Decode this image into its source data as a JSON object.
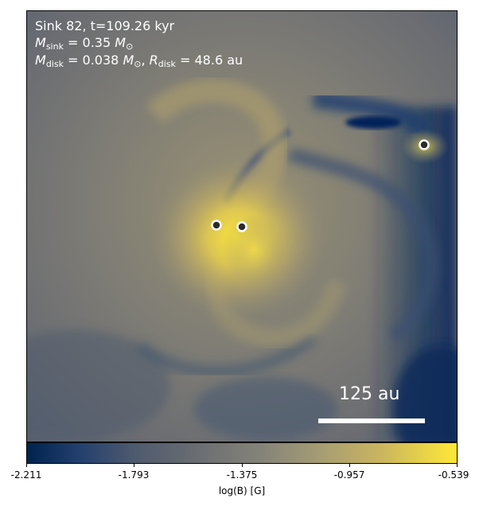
{
  "annotation": {
    "title": "Sink 82, t=109.26 kyr",
    "m_sink_symbol": "M",
    "m_sink_sub": "sink",
    "m_sink_value": "= 0.35",
    "m_sink_unit": "M",
    "m_sink_unit_sub": "⊙",
    "m_disk_symbol": "M",
    "m_disk_sub": "disk",
    "m_disk_value": "= 0.038",
    "m_disk_unit": "M",
    "m_disk_unit_sub": "⊙",
    "r_disk_symbol": "R",
    "r_disk_sub": "disk",
    "r_disk_value": "= 48.6 au"
  },
  "scale_bar": {
    "label": "125 au"
  },
  "colorbar": {
    "label": "log(B) [G]",
    "ticks": [
      "-2.211",
      "-1.793",
      "-1.375",
      "-0.957",
      "-0.539"
    ],
    "colormap": "cividis",
    "min_color": "#00224e",
    "max_color": "#fee838"
  },
  "sinks": {
    "count": 3,
    "marker_fill": "#2b2b2b",
    "marker_edge": "#ffffff"
  }
}
